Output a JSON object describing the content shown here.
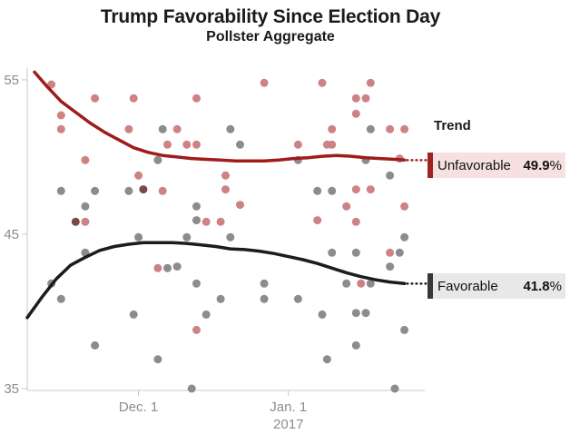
{
  "title": "Trump Favorability Since Election Day",
  "subtitle": "Pollster Aggregate",
  "legend": {
    "header": "Trend",
    "unfavorable": {
      "label": "Unfavorable",
      "value": "49.9",
      "unit": "%"
    },
    "favorable": {
      "label": "Favorable",
      "value": "41.8",
      "unit": "%"
    }
  },
  "colors": {
    "trend_unfavorable": "#9f1c1c",
    "trend_favorable": "#1c1c1c",
    "scatter_unfavorable": "#cd8383",
    "scatter_favorable": "#8c8c8c",
    "scatter_overlap": "#7b4848",
    "axis_line": "#c9c9c9",
    "tick_text": "#8c8c8c",
    "unfav_box_bg": "#f6e0e0",
    "unfav_box_bar": "#9f2323",
    "fav_box_bg": "#e8e8e8",
    "fav_box_bar": "#383838",
    "title_text": "#1a1a1a"
  },
  "chart_data": {
    "type": "scatter",
    "title": "Trump Favorability Since Election Day",
    "subtitle": "Pollster Aggregate",
    "x_unit": "days since Election Day (Nov 8, 2016)",
    "xlim": [
      0,
      82.2
    ],
    "ylim": [
      34.88,
      55.76
    ],
    "y_ticks": [
      35,
      45,
      55
    ],
    "x_ticks": [
      {
        "x": 23,
        "label": "Dec. 1"
      },
      {
        "x": 54,
        "label": "Jan. 1",
        "sublabel": "2017"
      }
    ],
    "grid": false,
    "legend_position": "right",
    "series": [
      {
        "id": "unfavorable_polls",
        "name": "Unfavorable (individual polls)",
        "kind": "scatter",
        "color": "#cd8383",
        "points": [
          [
            5,
            54.7
          ],
          [
            14,
            53.8
          ],
          [
            22,
            53.8
          ],
          [
            35,
            53.8
          ],
          [
            49,
            54.8
          ],
          [
            61,
            54.8
          ],
          [
            71,
            54.8
          ],
          [
            7,
            52.7
          ],
          [
            7,
            51.8
          ],
          [
            21,
            51.8
          ],
          [
            31,
            51.8
          ],
          [
            29,
            50.8
          ],
          [
            33,
            50.8
          ],
          [
            35,
            50.8
          ],
          [
            12,
            49.8
          ],
          [
            23,
            48.8
          ],
          [
            28,
            47.8
          ],
          [
            12,
            45.8
          ],
          [
            37,
            45.8
          ],
          [
            40,
            45.8
          ],
          [
            68,
            53.8
          ],
          [
            70,
            53.8
          ],
          [
            68,
            52.8
          ],
          [
            63,
            51.8
          ],
          [
            75,
            51.8
          ],
          [
            78,
            51.8
          ],
          [
            56,
            50.8
          ],
          [
            62,
            50.8
          ],
          [
            63,
            50.8
          ],
          [
            41,
            48.8
          ],
          [
            41,
            47.9
          ],
          [
            68,
            47.9
          ],
          [
            71,
            47.9
          ],
          [
            44,
            46.9
          ],
          [
            66,
            46.8
          ],
          [
            78,
            46.8
          ],
          [
            60,
            45.9
          ],
          [
            68,
            45.8
          ],
          [
            27,
            42.8
          ],
          [
            69,
            41.8
          ],
          [
            75,
            43.8
          ],
          [
            35,
            38.8
          ],
          [
            77,
            49.9
          ]
        ]
      },
      {
        "id": "favorable_polls",
        "name": "Favorable (individual polls)",
        "kind": "scatter",
        "color": "#8c8c8c",
        "points": [
          [
            28,
            51.8
          ],
          [
            42,
            51.8
          ],
          [
            71,
            51.8
          ],
          [
            27,
            49.8
          ],
          [
            56,
            49.8
          ],
          [
            70,
            49.8
          ],
          [
            44,
            50.8
          ],
          [
            75,
            48.8
          ],
          [
            7,
            47.8
          ],
          [
            14,
            47.8
          ],
          [
            21,
            47.8
          ],
          [
            60,
            47.8
          ],
          [
            63,
            47.8
          ],
          [
            12,
            46.8
          ],
          [
            35,
            46.8
          ],
          [
            35,
            45.9
          ],
          [
            23,
            44.8
          ],
          [
            33,
            44.8
          ],
          [
            42,
            44.8
          ],
          [
            78,
            44.8
          ],
          [
            12,
            43.8
          ],
          [
            63,
            43.8
          ],
          [
            68,
            43.8
          ],
          [
            77,
            43.8
          ],
          [
            29,
            42.8
          ],
          [
            31,
            42.9
          ],
          [
            75,
            42.9
          ],
          [
            5,
            41.8
          ],
          [
            35,
            41.8
          ],
          [
            49,
            41.8
          ],
          [
            66,
            41.8
          ],
          [
            71,
            41.8
          ],
          [
            7,
            40.8
          ],
          [
            40,
            40.8
          ],
          [
            49,
            40.8
          ],
          [
            56,
            40.8
          ],
          [
            22,
            39.8
          ],
          [
            37,
            39.8
          ],
          [
            61,
            39.8
          ],
          [
            68,
            39.9
          ],
          [
            70,
            39.9
          ],
          [
            78,
            38.8
          ],
          [
            14,
            37.8
          ],
          [
            68,
            37.8
          ],
          [
            27,
            36.9
          ],
          [
            62,
            36.9
          ],
          [
            34,
            35.0
          ],
          [
            76,
            35.0
          ]
        ]
      },
      {
        "id": "overlap_polls",
        "name": "Overlapping favorable/unfavorable points",
        "kind": "scatter",
        "color": "#7b4848",
        "points": [
          [
            10,
            45.8
          ],
          [
            24,
            47.9
          ]
        ]
      },
      {
        "id": "unfavorable_trend",
        "name": "Unfavorable trend",
        "kind": "line",
        "color": "#9f1c1c",
        "end_value": 49.9,
        "dotted_to": 82.7,
        "points": [
          [
            1.5,
            55.5
          ],
          [
            4,
            54.6
          ],
          [
            7,
            53.6
          ],
          [
            10,
            52.9
          ],
          [
            13,
            52.2
          ],
          [
            16,
            51.6
          ],
          [
            19,
            51.1
          ],
          [
            22,
            50.6
          ],
          [
            25,
            50.3
          ],
          [
            28,
            50.1
          ],
          [
            31,
            50.0
          ],
          [
            34,
            49.9
          ],
          [
            37,
            49.85
          ],
          [
            40,
            49.8
          ],
          [
            43,
            49.75
          ],
          [
            46,
            49.75
          ],
          [
            49,
            49.75
          ],
          [
            52,
            49.8
          ],
          [
            55,
            49.9
          ],
          [
            58,
            49.95
          ],
          [
            61,
            50.05
          ],
          [
            64,
            50.1
          ],
          [
            67,
            50.05
          ],
          [
            70,
            49.95
          ],
          [
            73,
            49.9
          ],
          [
            76,
            49.85
          ],
          [
            78,
            49.8
          ]
        ]
      },
      {
        "id": "favorable_trend",
        "name": "Favorable trend",
        "kind": "line",
        "color": "#1c1c1c",
        "end_value": 41.8,
        "dotted_to": 82.7,
        "points": [
          [
            0,
            39.6
          ],
          [
            3,
            40.9
          ],
          [
            6,
            42.1
          ],
          [
            9,
            43.0
          ],
          [
            12,
            43.5
          ],
          [
            15,
            43.95
          ],
          [
            18,
            44.2
          ],
          [
            21,
            44.35
          ],
          [
            24,
            44.45
          ],
          [
            27,
            44.45
          ],
          [
            30,
            44.45
          ],
          [
            33,
            44.4
          ],
          [
            36,
            44.3
          ],
          [
            39,
            44.2
          ],
          [
            42,
            44.05
          ],
          [
            45,
            44.0
          ],
          [
            48,
            43.9
          ],
          [
            51,
            43.75
          ],
          [
            54,
            43.55
          ],
          [
            57,
            43.35
          ],
          [
            60,
            43.1
          ],
          [
            63,
            42.8
          ],
          [
            66,
            42.5
          ],
          [
            69,
            42.25
          ],
          [
            72,
            42.05
          ],
          [
            75,
            41.9
          ],
          [
            78,
            41.8
          ]
        ]
      }
    ]
  }
}
